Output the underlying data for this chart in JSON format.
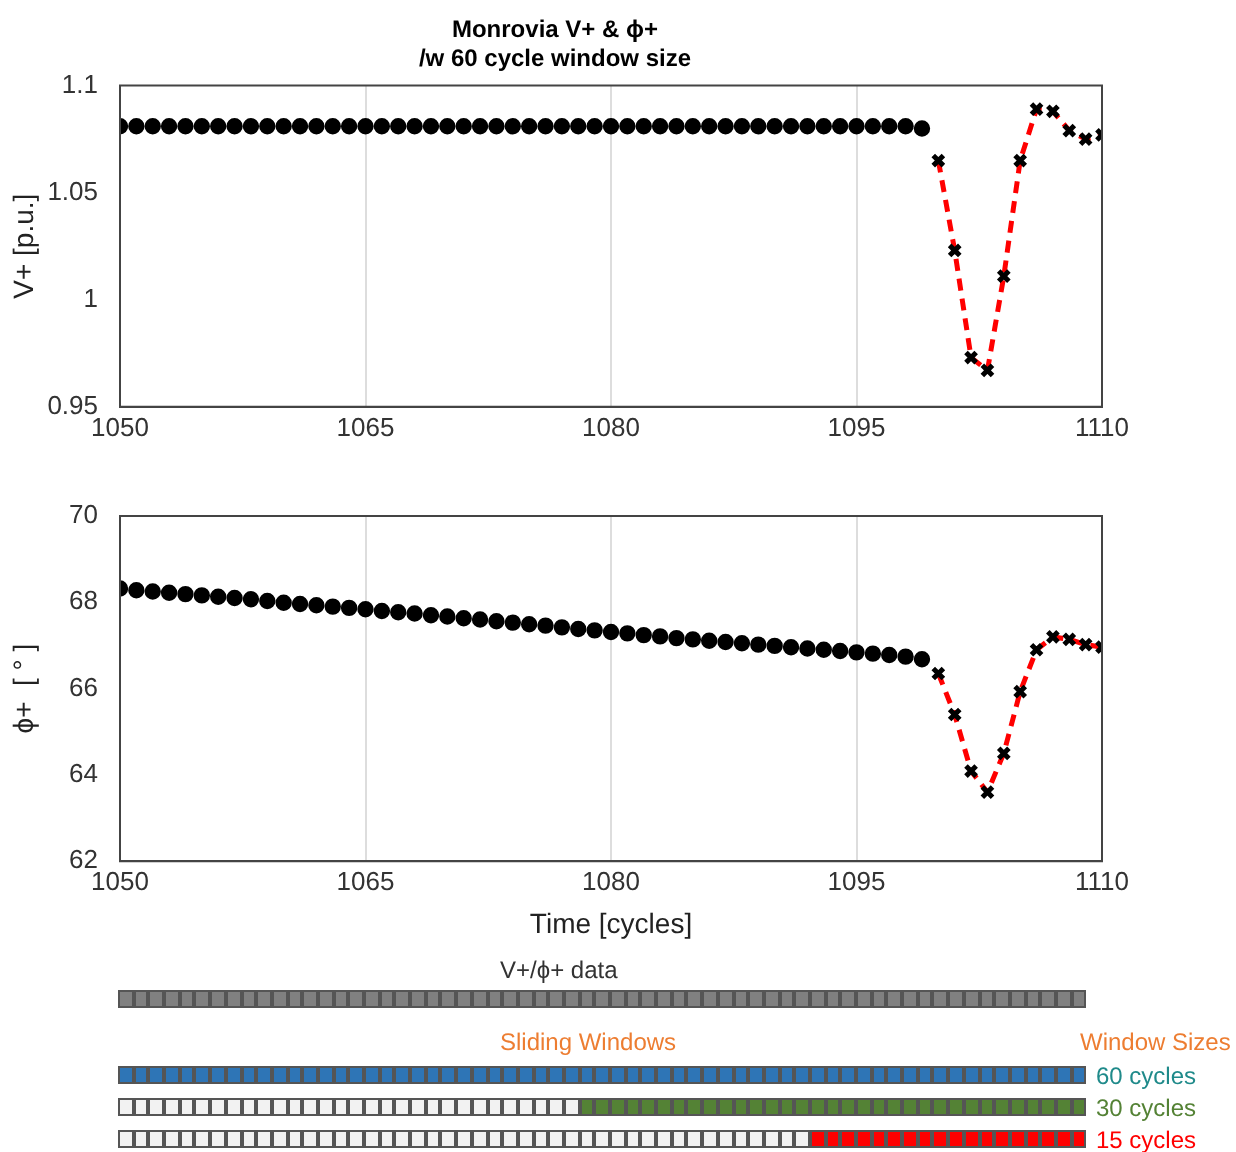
{
  "chart_data": [
    {
      "type": "line",
      "title": "Monrovia V+ & ϕ+",
      "subtitle": "/w 60 cycle window size",
      "ylabel": "V+ [p.u.]",
      "xlim": [
        1050,
        1110
      ],
      "xticks": [
        1050,
        1065,
        1080,
        1095,
        1110
      ],
      "ylim": [
        0.95,
        1.1
      ],
      "yticks": [
        0.95,
        1,
        1.05,
        1.1
      ],
      "grid": "x",
      "legend": false,
      "series": [
        {
          "type": "scatter",
          "color": "#000000",
          "marker": "circle",
          "x": [
            1050,
            1051,
            1052,
            1053,
            1054,
            1055,
            1056,
            1057,
            1058,
            1059,
            1060,
            1061,
            1062,
            1063,
            1064,
            1065,
            1066,
            1067,
            1068,
            1069,
            1070,
            1071,
            1072,
            1073,
            1074,
            1075,
            1076,
            1077,
            1078,
            1079,
            1080,
            1081,
            1082,
            1083,
            1084,
            1085,
            1086,
            1087,
            1088,
            1089,
            1090,
            1091,
            1092,
            1093,
            1094,
            1095,
            1096,
            1097,
            1098,
            1099
          ],
          "values": [
            1.081,
            1.081,
            1.081,
            1.081,
            1.081,
            1.081,
            1.081,
            1.081,
            1.081,
            1.081,
            1.081,
            1.081,
            1.081,
            1.081,
            1.081,
            1.081,
            1.081,
            1.081,
            1.081,
            1.081,
            1.081,
            1.081,
            1.081,
            1.081,
            1.081,
            1.081,
            1.081,
            1.081,
            1.081,
            1.081,
            1.081,
            1.081,
            1.081,
            1.081,
            1.081,
            1.081,
            1.081,
            1.081,
            1.081,
            1.081,
            1.081,
            1.081,
            1.081,
            1.081,
            1.081,
            1.081,
            1.081,
            1.081,
            1.081,
            1.08
          ]
        },
        {
          "type": "line",
          "color": "#ff0000",
          "marker": "cross",
          "line_style": "dashed",
          "x": [
            1100,
            1101,
            1102,
            1103,
            1104,
            1105,
            1106,
            1107,
            1108,
            1109,
            1110
          ],
          "values": [
            1.065,
            1.023,
            0.973,
            0.967,
            1.011,
            1.065,
            1.089,
            1.088,
            1.079,
            1.075,
            1.077
          ]
        }
      ]
    },
    {
      "type": "line",
      "xlabel": "Time [cycles]",
      "ylabel": "ϕ+  [ ° ]",
      "xlim": [
        1050,
        1110
      ],
      "xticks": [
        1050,
        1065,
        1080,
        1095,
        1110
      ],
      "ylim": [
        62,
        70
      ],
      "yticks": [
        62,
        64,
        66,
        68,
        70
      ],
      "grid": "x",
      "legend": false,
      "annotations": [
        "V+/ϕ+ data",
        "Sliding Windows",
        "Window Sizes",
        "60 cycles",
        "30 cycles",
        "15 cycles"
      ],
      "series": [
        {
          "type": "scatter",
          "color": "#000000",
          "marker": "circle",
          "x": [
            1050,
            1051,
            1052,
            1053,
            1054,
            1055,
            1056,
            1057,
            1058,
            1059,
            1060,
            1061,
            1062,
            1063,
            1064,
            1065,
            1066,
            1067,
            1068,
            1069,
            1070,
            1071,
            1072,
            1073,
            1074,
            1075,
            1076,
            1077,
            1078,
            1079,
            1080,
            1081,
            1082,
            1083,
            1084,
            1085,
            1086,
            1087,
            1088,
            1089,
            1090,
            1091,
            1092,
            1093,
            1094,
            1095,
            1096,
            1097,
            1098,
            1099
          ],
          "values": [
            68.32,
            68.28,
            68.25,
            68.22,
            68.19,
            68.16,
            68.13,
            68.1,
            68.07,
            68.03,
            67.99,
            67.96,
            67.93,
            67.9,
            67.87,
            67.84,
            67.8,
            67.77,
            67.74,
            67.7,
            67.67,
            67.63,
            67.6,
            67.56,
            67.53,
            67.49,
            67.46,
            67.42,
            67.38,
            67.35,
            67.31,
            67.28,
            67.24,
            67.21,
            67.17,
            67.14,
            67.11,
            67.08,
            67.05,
            67.02,
            66.99,
            66.96,
            66.93,
            66.9,
            66.87,
            66.84,
            66.81,
            66.78,
            66.74,
            66.68
          ]
        },
        {
          "type": "line",
          "color": "#ff0000",
          "marker": "cross",
          "line_style": "dashed",
          "x": [
            1100,
            1101,
            1102,
            1103,
            1104,
            1105,
            1106,
            1107,
            1108,
            1109,
            1110
          ],
          "values": [
            66.35,
            65.4,
            64.09,
            63.6,
            64.5,
            65.93,
            66.9,
            67.2,
            67.14,
            67.02,
            66.96
          ]
        }
      ]
    }
  ]
}
